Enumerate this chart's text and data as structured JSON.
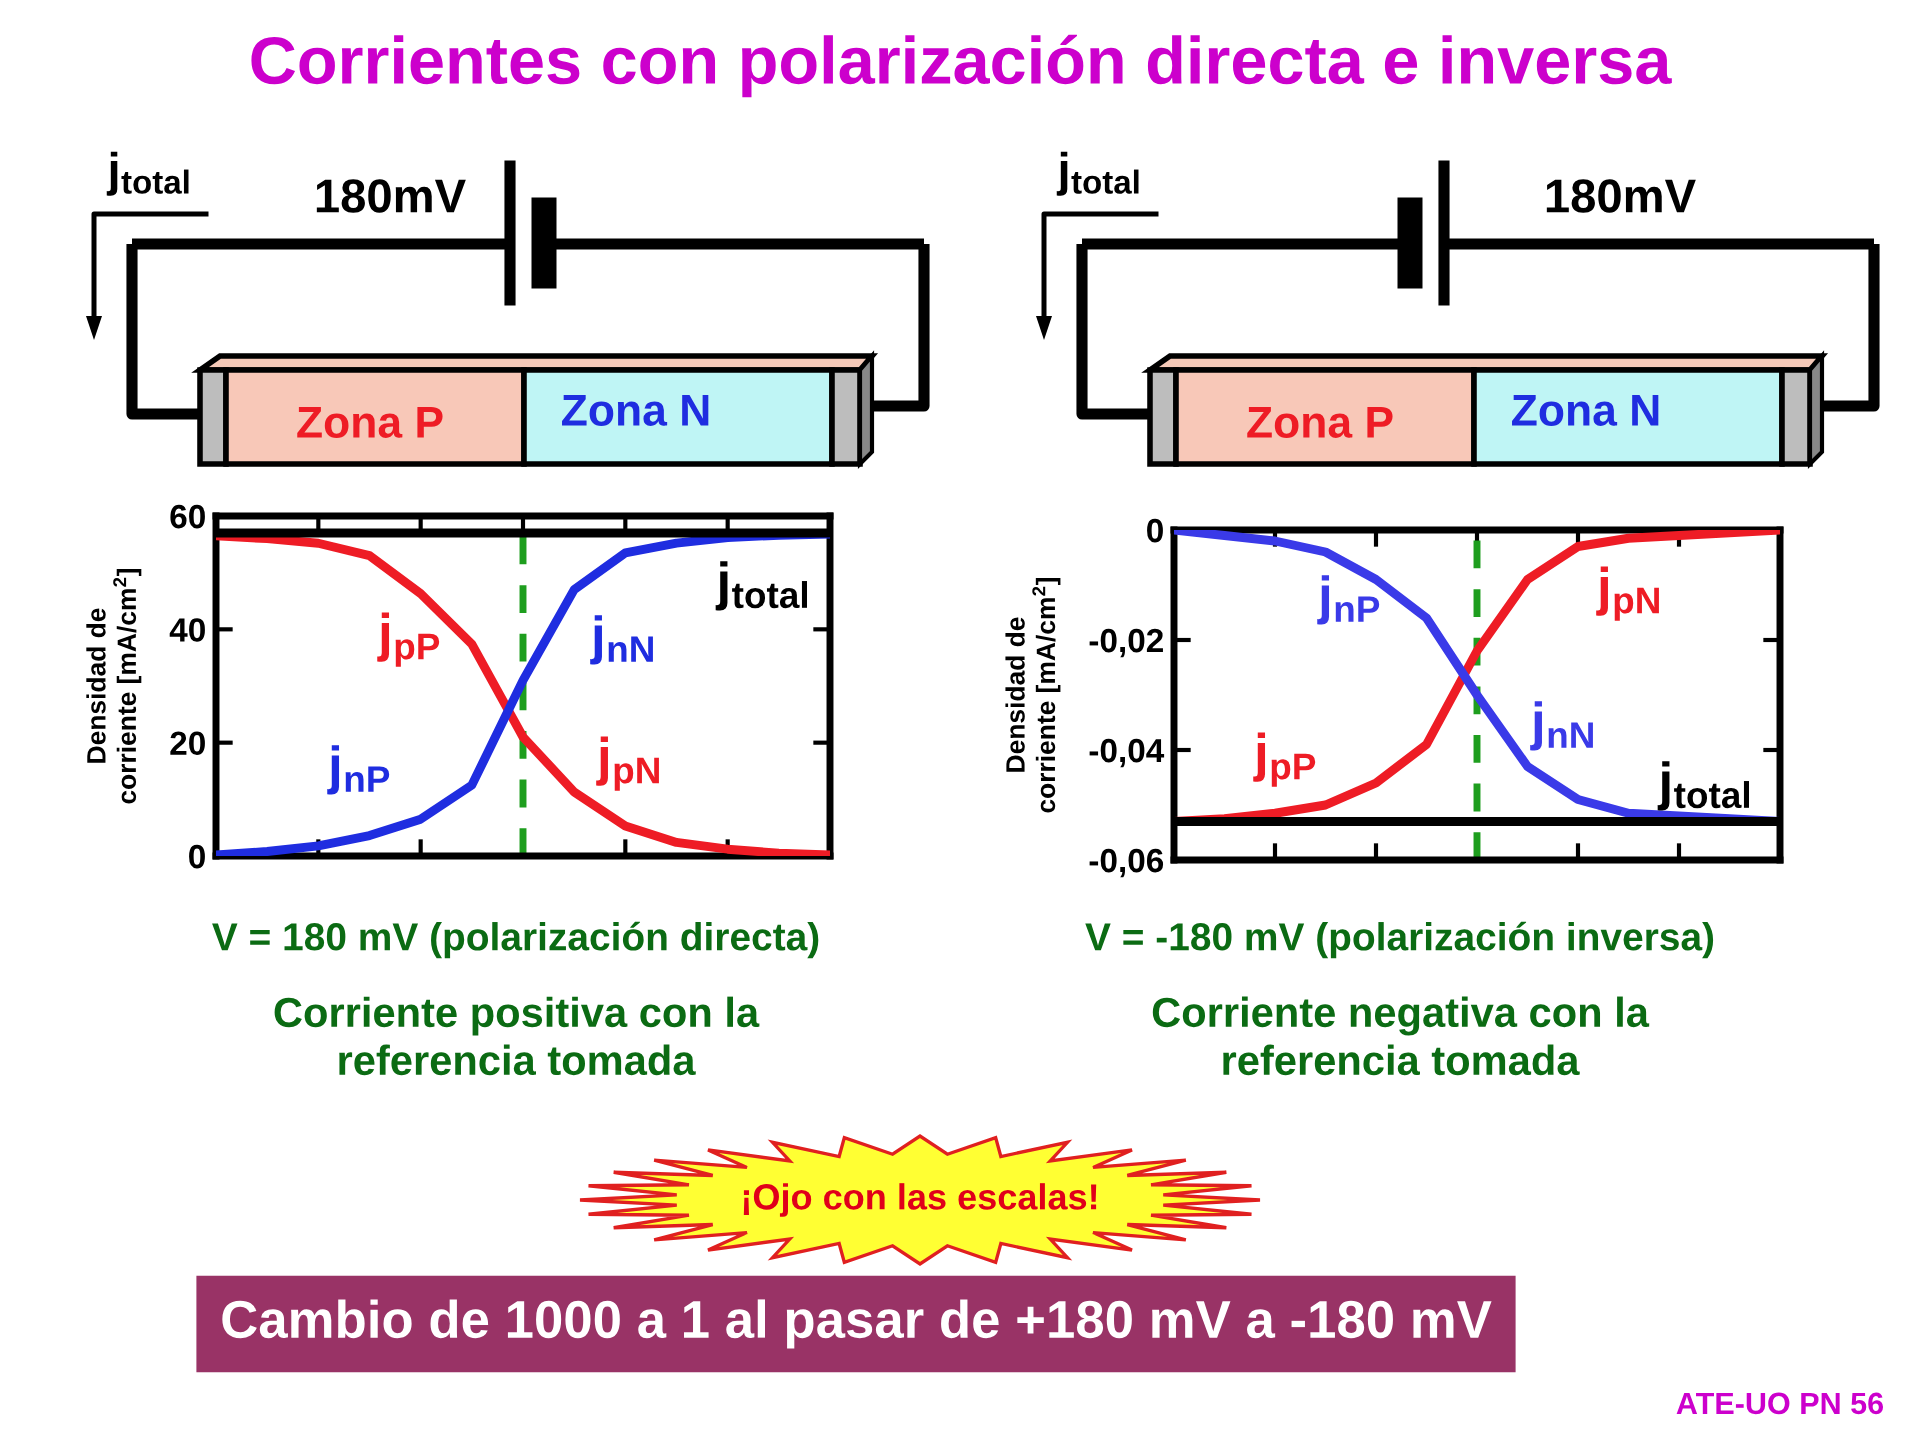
{
  "chart_data": [
    {
      "type": "line",
      "title": "Corrientes con polarización directa e inversa",
      "ylabel": "Densidad de\ncorriente [mA/cm$^{2}$]",
      "categories": [
        null,
        null,
        null,
        null,
        null,
        null,
        null,
        null,
        null,
        null,
        null,
        null,
        null
      ],
      "ylim": [
        0,
        60
      ],
      "yticks": [
        0,
        20,
        40,
        60
      ],
      "tick_labels": "y",
      "grid": false,
      "legend": false,
      "series": [
        {
          "color": "#ee1c25",
          "values": [
            56.5,
            56,
            55.2,
            53,
            46.3,
            37.4,
            21,
            11.3,
            5.3,
            2.4,
            1.2,
            0.5,
            0.2
          ]
        },
        {
          "color": "#1f2de0",
          "values": [
            0.2,
            0.8,
            1.8,
            3.6,
            6.5,
            12.5,
            31,
            47,
            53.5,
            55.2,
            56.2,
            56.6,
            56.8
          ]
        },
        {
          "color": "#000000",
          "values": [
            57,
            57,
            57,
            57,
            57,
            57,
            57,
            57,
            57,
            57,
            57,
            57,
            57
          ]
        }
      ],
      "annotations": [
        "j$_{pP}$",
        "j$_{nN}$",
        "j$_{nP}$",
        "j$_{pN}$",
        "j$_{total}$",
        "j$_{total}$",
        "180mV",
        "Zona P",
        "Zona N",
        "V = 180 mV (polarización directa)",
        "Corriente positiva con la\nreferencia tomada"
      ]
    },
    {
      "type": "line",
      "ylabel": "Densidad de\ncorriente [mA/cm$^{2}$]",
      "categories": [
        null,
        null,
        null,
        null,
        null,
        null,
        null,
        null,
        null,
        null,
        null,
        null,
        null
      ],
      "ylim": [
        -0.06,
        0
      ],
      "yticks": [
        {
          "value": -0.06,
          "label": "-0,06"
        },
        {
          "value": -0.04,
          "label": "-0,04"
        },
        {
          "value": -0.02,
          "label": "-0,02"
        },
        0
      ],
      "tick_labels": "y",
      "grid": false,
      "legend": false,
      "series": [
        {
          "color": "#ee1c25",
          "values": [
            -0.053,
            -0.0525,
            -0.0515,
            -0.05,
            -0.046,
            -0.039,
            -0.022,
            -0.009,
            -0.003,
            -0.0015,
            -0.001,
            -0.0005,
            0
          ]
        },
        {
          "color": "#3a3ae8",
          "values": [
            0,
            -0.001,
            -0.002,
            -0.004,
            -0.009,
            -0.016,
            -0.03,
            -0.043,
            -0.049,
            -0.0515,
            -0.052,
            -0.0525,
            -0.053
          ]
        },
        {
          "color": "#000000",
          "values": [
            -0.053,
            -0.053,
            -0.053,
            -0.053,
            -0.053,
            -0.053,
            -0.053,
            -0.053,
            -0.053,
            -0.053,
            -0.053,
            -0.053,
            -0.053
          ]
        }
      ],
      "annotations": [
        "j$_{nP}$",
        "j$_{pN}$",
        "j$_{nN}$",
        "j$_{pP}$",
        "j$_{total}$",
        "j$_{total}$",
        "180mV",
        "Zona P",
        "Zona N",
        "V = -180 mV (polarización inversa)",
        "Corriente negativa con la\nreferencia tomada",
        "¡Ojo con las escalas!",
        "Cambio de 1000 a 1 al pasar de +180 mV a -180 mV",
        "ATE-UO PN 56"
      ]
    }
  ]
}
